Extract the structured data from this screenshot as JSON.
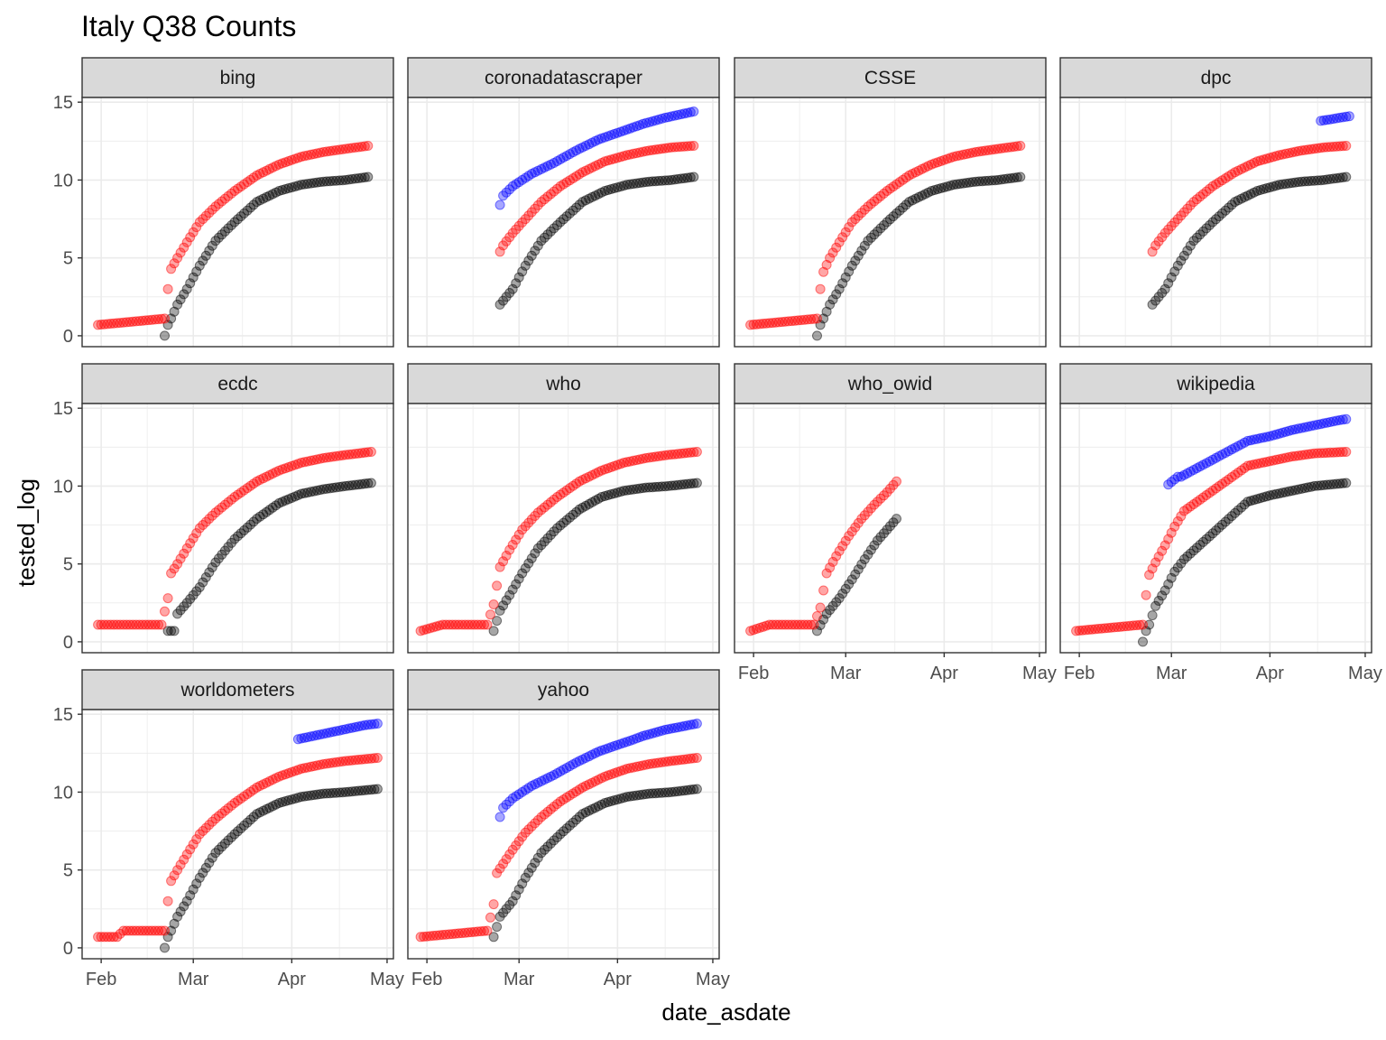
{
  "chart_data": {
    "type": "scatter",
    "title": "Italy Q38 Counts",
    "xlabel": "date_asdate",
    "ylabel": "tested_log",
    "x_ticks": [
      "Feb",
      "Mar",
      "Apr",
      "May"
    ],
    "x_tick_dates": [
      "2020-02-01",
      "2020-03-01",
      "2020-04-01",
      "2020-05-01"
    ],
    "xlim": [
      "2020-01-26",
      "2020-05-03"
    ],
    "y_ticks": [
      0,
      5,
      10,
      15
    ],
    "ylim": [
      -0.7,
      15.3
    ],
    "grid": true,
    "series_colors": {
      "black": "#000000",
      "red": "#ff0000",
      "blue": "#0000ff"
    },
    "point_alpha": 0.35,
    "panels": [
      {
        "label": "bing",
        "series": [
          {
            "color": "red",
            "x": [
              "2020-01-31",
              "2020-02-21",
              "2020-02-22",
              "2020-02-23",
              "2020-02-25",
              "2020-02-28",
              "2020-03-03",
              "2020-03-08",
              "2020-03-14",
              "2020-03-21",
              "2020-03-28",
              "2020-04-04",
              "2020-04-11",
              "2020-04-18",
              "2020-04-25"
            ],
            "y": [
              0.7,
              1.1,
              3.0,
              4.3,
              5.0,
              6.0,
              7.3,
              8.3,
              9.3,
              10.3,
              11.0,
              11.5,
              11.8,
              12.0,
              12.2
            ]
          },
          {
            "color": "black",
            "x": [
              "2020-02-21",
              "2020-02-22",
              "2020-02-23",
              "2020-02-25",
              "2020-02-28",
              "2020-03-03",
              "2020-03-08",
              "2020-03-14",
              "2020-03-21",
              "2020-03-28",
              "2020-04-04",
              "2020-04-11",
              "2020-04-18",
              "2020-04-25"
            ],
            "y": [
              0.0,
              0.7,
              1.1,
              2.0,
              3.0,
              4.5,
              6.1,
              7.3,
              8.6,
              9.3,
              9.7,
              9.9,
              10.0,
              10.2
            ]
          }
        ]
      },
      {
        "label": "coronadatascraper",
        "series": [
          {
            "color": "blue",
            "x": [
              "2020-02-24",
              "2020-02-25",
              "2020-02-28",
              "2020-03-05",
              "2020-03-12",
              "2020-03-19",
              "2020-03-26",
              "2020-04-02",
              "2020-04-09",
              "2020-04-16",
              "2020-04-25"
            ],
            "y": [
              8.4,
              9.0,
              9.6,
              10.4,
              11.1,
              11.9,
              12.6,
              13.1,
              13.6,
              14.0,
              14.4
            ]
          },
          {
            "color": "red",
            "x": [
              "2020-02-24",
              "2020-02-25",
              "2020-02-28",
              "2020-03-03",
              "2020-03-08",
              "2020-03-14",
              "2020-03-21",
              "2020-03-28",
              "2020-04-04",
              "2020-04-11",
              "2020-04-18",
              "2020-04-25"
            ],
            "y": [
              5.4,
              5.8,
              6.6,
              7.5,
              8.6,
              9.6,
              10.5,
              11.2,
              11.6,
              11.9,
              12.1,
              12.2
            ]
          },
          {
            "color": "black",
            "x": [
              "2020-02-24",
              "2020-02-28",
              "2020-03-03",
              "2020-03-08",
              "2020-03-14",
              "2020-03-21",
              "2020-03-28",
              "2020-04-04",
              "2020-04-11",
              "2020-04-18",
              "2020-04-25"
            ],
            "y": [
              2.0,
              3.0,
              4.5,
              6.1,
              7.3,
              8.6,
              9.3,
              9.7,
              9.9,
              10.0,
              10.2
            ]
          }
        ]
      },
      {
        "label": "CSSE",
        "series": [
          {
            "color": "red",
            "x": [
              "2020-01-31",
              "2020-02-21",
              "2020-02-22",
              "2020-02-23",
              "2020-02-25",
              "2020-02-28",
              "2020-03-03",
              "2020-03-08",
              "2020-03-14",
              "2020-03-21",
              "2020-03-28",
              "2020-04-04",
              "2020-04-11",
              "2020-04-18",
              "2020-04-25"
            ],
            "y": [
              0.7,
              1.1,
              3.0,
              4.1,
              5.0,
              6.0,
              7.3,
              8.3,
              9.3,
              10.3,
              11.0,
              11.5,
              11.8,
              12.0,
              12.2
            ]
          },
          {
            "color": "black",
            "x": [
              "2020-02-21",
              "2020-02-22",
              "2020-02-23",
              "2020-02-25",
              "2020-02-28",
              "2020-03-03",
              "2020-03-08",
              "2020-03-14",
              "2020-03-21",
              "2020-03-28",
              "2020-04-04",
              "2020-04-11",
              "2020-04-18",
              "2020-04-25"
            ],
            "y": [
              0.0,
              0.7,
              1.1,
              2.0,
              3.0,
              4.5,
              6.1,
              7.3,
              8.6,
              9.3,
              9.7,
              9.9,
              10.0,
              10.2
            ]
          }
        ]
      },
      {
        "label": "dpc",
        "series": [
          {
            "color": "blue",
            "x": [
              "2020-04-17",
              "2020-04-20",
              "2020-04-23",
              "2020-04-26"
            ],
            "y": [
              13.8,
              13.9,
              14.0,
              14.1
            ]
          },
          {
            "color": "red",
            "x": [
              "2020-02-24",
              "2020-02-25",
              "2020-02-28",
              "2020-03-03",
              "2020-03-08",
              "2020-03-14",
              "2020-03-21",
              "2020-03-28",
              "2020-04-04",
              "2020-04-11",
              "2020-04-18",
              "2020-04-25"
            ],
            "y": [
              5.4,
              5.8,
              6.6,
              7.5,
              8.6,
              9.6,
              10.5,
              11.2,
              11.6,
              11.9,
              12.1,
              12.2
            ]
          },
          {
            "color": "black",
            "x": [
              "2020-02-24",
              "2020-02-28",
              "2020-03-03",
              "2020-03-08",
              "2020-03-14",
              "2020-03-21",
              "2020-03-28",
              "2020-04-04",
              "2020-04-11",
              "2020-04-18",
              "2020-04-25"
            ],
            "y": [
              2.0,
              3.0,
              4.5,
              6.1,
              7.3,
              8.6,
              9.3,
              9.7,
              9.9,
              10.0,
              10.2
            ]
          }
        ]
      },
      {
        "label": "ecdc",
        "series": [
          {
            "color": "red",
            "x": [
              "2020-01-31",
              "2020-02-20",
              "2020-02-22",
              "2020-02-23",
              "2020-02-25",
              "2020-02-28",
              "2020-03-03",
              "2020-03-08",
              "2020-03-14",
              "2020-03-21",
              "2020-03-28",
              "2020-04-04",
              "2020-04-11",
              "2020-04-18",
              "2020-04-26"
            ],
            "y": [
              1.1,
              1.1,
              2.8,
              4.4,
              5.0,
              6.0,
              7.3,
              8.3,
              9.3,
              10.3,
              11.0,
              11.5,
              11.8,
              12.0,
              12.2
            ]
          },
          {
            "color": "black",
            "x": [
              "2020-02-22",
              "2020-02-24",
              "2020-02-25",
              "2020-02-28",
              "2020-03-03",
              "2020-03-08",
              "2020-03-14",
              "2020-03-21",
              "2020-03-28",
              "2020-04-04",
              "2020-04-11",
              "2020-04-18",
              "2020-04-26"
            ],
            "y": [
              0.7,
              0.7,
              1.8,
              2.5,
              3.5,
              5.1,
              6.6,
              7.9,
              8.9,
              9.5,
              9.8,
              10.0,
              10.2
            ]
          }
        ]
      },
      {
        "label": "who",
        "series": [
          {
            "color": "red",
            "x": [
              "2020-01-30",
              "2020-02-06",
              "2020-02-20",
              "2020-02-22",
              "2020-02-24",
              "2020-02-27",
              "2020-03-02",
              "2020-03-07",
              "2020-03-13",
              "2020-03-20",
              "2020-03-27",
              "2020-04-03",
              "2020-04-10",
              "2020-04-17",
              "2020-04-26"
            ],
            "y": [
              0.7,
              1.1,
              1.1,
              2.4,
              4.8,
              5.9,
              7.2,
              8.3,
              9.3,
              10.3,
              11.0,
              11.5,
              11.8,
              12.0,
              12.2
            ]
          },
          {
            "color": "black",
            "x": [
              "2020-02-22",
              "2020-02-24",
              "2020-02-27",
              "2020-03-02",
              "2020-03-07",
              "2020-03-13",
              "2020-03-20",
              "2020-03-27",
              "2020-04-03",
              "2020-04-10",
              "2020-04-17",
              "2020-04-26"
            ],
            "y": [
              0.7,
              2.0,
              3.0,
              4.4,
              6.0,
              7.3,
              8.5,
              9.3,
              9.7,
              9.9,
              10.0,
              10.2
            ]
          }
        ]
      },
      {
        "label": "who_owid",
        "series": [
          {
            "color": "red",
            "x": [
              "2020-01-31",
              "2020-02-06",
              "2020-02-20",
              "2020-02-22",
              "2020-02-24",
              "2020-02-27",
              "2020-03-02",
              "2020-03-06",
              "2020-03-10",
              "2020-03-14",
              "2020-03-17"
            ],
            "y": [
              0.7,
              1.1,
              1.1,
              2.2,
              4.4,
              5.5,
              6.8,
              7.9,
              8.8,
              9.6,
              10.3
            ]
          },
          {
            "color": "black",
            "x": [
              "2020-02-21",
              "2020-02-24",
              "2020-02-28",
              "2020-03-03",
              "2020-03-07",
              "2020-03-11",
              "2020-03-14",
              "2020-03-17"
            ],
            "y": [
              0.7,
              1.8,
              2.8,
              4.0,
              5.3,
              6.5,
              7.2,
              7.9
            ]
          }
        ]
      },
      {
        "label": "wikipedia",
        "series": [
          {
            "color": "blue",
            "x": [
              "2020-02-29",
              "2020-03-03",
              "2020-03-04",
              "2020-03-25",
              "2020-04-01",
              "2020-04-08",
              "2020-04-15",
              "2020-04-22",
              "2020-04-25"
            ],
            "y": [
              10.1,
              10.6,
              10.6,
              12.9,
              13.2,
              13.6,
              13.9,
              14.2,
              14.3
            ]
          },
          {
            "color": "red",
            "x": [
              "2020-01-31",
              "2020-02-21",
              "2020-02-22",
              "2020-02-23",
              "2020-02-25",
              "2020-02-28",
              "2020-03-02",
              "2020-03-05",
              "2020-03-25",
              "2020-04-01",
              "2020-04-08",
              "2020-04-15",
              "2020-04-25"
            ],
            "y": [
              0.7,
              1.1,
              3.0,
              4.3,
              5.1,
              6.2,
              7.4,
              8.4,
              11.3,
              11.6,
              11.9,
              12.1,
              12.2
            ]
          },
          {
            "color": "black",
            "x": [
              "2020-02-21",
              "2020-02-22",
              "2020-02-23",
              "2020-02-25",
              "2020-02-28",
              "2020-03-02",
              "2020-03-05",
              "2020-03-25",
              "2020-04-01",
              "2020-04-08",
              "2020-04-15",
              "2020-04-25"
            ],
            "y": [
              0.0,
              0.7,
              1.1,
              2.3,
              3.3,
              4.5,
              5.3,
              9.0,
              9.4,
              9.7,
              10.0,
              10.2
            ]
          }
        ]
      },
      {
        "label": "worldometers",
        "series": [
          {
            "color": "blue",
            "x": [
              "2020-04-03",
              "2020-04-10",
              "2020-04-17",
              "2020-04-24",
              "2020-04-28"
            ],
            "y": [
              13.4,
              13.7,
              14.0,
              14.3,
              14.4
            ]
          },
          {
            "color": "red",
            "x": [
              "2020-01-31",
              "2020-02-06",
              "2020-02-08",
              "2020-02-10",
              "2020-02-21",
              "2020-02-22",
              "2020-02-23",
              "2020-02-25",
              "2020-02-28",
              "2020-03-03",
              "2020-03-08",
              "2020-03-14",
              "2020-03-21",
              "2020-03-28",
              "2020-04-04",
              "2020-04-11",
              "2020-04-18",
              "2020-04-28"
            ],
            "y": [
              0.7,
              0.7,
              1.1,
              1.1,
              1.1,
              3.0,
              4.3,
              5.0,
              6.0,
              7.3,
              8.3,
              9.3,
              10.3,
              11.0,
              11.5,
              11.8,
              12.0,
              12.2
            ]
          },
          {
            "color": "black",
            "x": [
              "2020-02-21",
              "2020-02-22",
              "2020-02-23",
              "2020-02-25",
              "2020-02-28",
              "2020-03-03",
              "2020-03-08",
              "2020-03-14",
              "2020-03-21",
              "2020-03-28",
              "2020-04-04",
              "2020-04-11",
              "2020-04-18",
              "2020-04-28"
            ],
            "y": [
              0.0,
              0.7,
              1.1,
              2.0,
              3.0,
              4.5,
              6.1,
              7.3,
              8.6,
              9.3,
              9.7,
              9.9,
              10.0,
              10.2
            ]
          }
        ]
      },
      {
        "label": "yahoo",
        "series": [
          {
            "color": "blue",
            "x": [
              "2020-02-24",
              "2020-02-25",
              "2020-02-28",
              "2020-03-05",
              "2020-03-12",
              "2020-03-19",
              "2020-03-26",
              "2020-04-02",
              "2020-04-05",
              "2020-04-09",
              "2020-04-16",
              "2020-04-26"
            ],
            "y": [
              8.4,
              9.0,
              9.6,
              10.4,
              11.1,
              11.9,
              12.6,
              13.1,
              13.3,
              13.6,
              14.0,
              14.4
            ]
          },
          {
            "color": "red",
            "x": [
              "2020-01-30",
              "2020-02-20",
              "2020-02-22",
              "2020-02-23",
              "2020-02-25",
              "2020-02-28",
              "2020-03-03",
              "2020-03-08",
              "2020-03-14",
              "2020-03-21",
              "2020-03-28",
              "2020-04-04",
              "2020-04-11",
              "2020-04-18",
              "2020-04-26"
            ],
            "y": [
              0.7,
              1.1,
              2.8,
              4.8,
              5.4,
              6.3,
              7.4,
              8.4,
              9.4,
              10.3,
              11.0,
              11.5,
              11.8,
              12.0,
              12.2
            ]
          },
          {
            "color": "black",
            "x": [
              "2020-02-22",
              "2020-02-24",
              "2020-02-28",
              "2020-03-03",
              "2020-03-08",
              "2020-03-14",
              "2020-03-21",
              "2020-03-28",
              "2020-04-04",
              "2020-04-11",
              "2020-04-18",
              "2020-04-26"
            ],
            "y": [
              0.7,
              2.0,
              3.0,
              4.5,
              6.1,
              7.3,
              8.6,
              9.3,
              9.7,
              9.9,
              10.0,
              10.2
            ]
          }
        ]
      }
    ]
  }
}
